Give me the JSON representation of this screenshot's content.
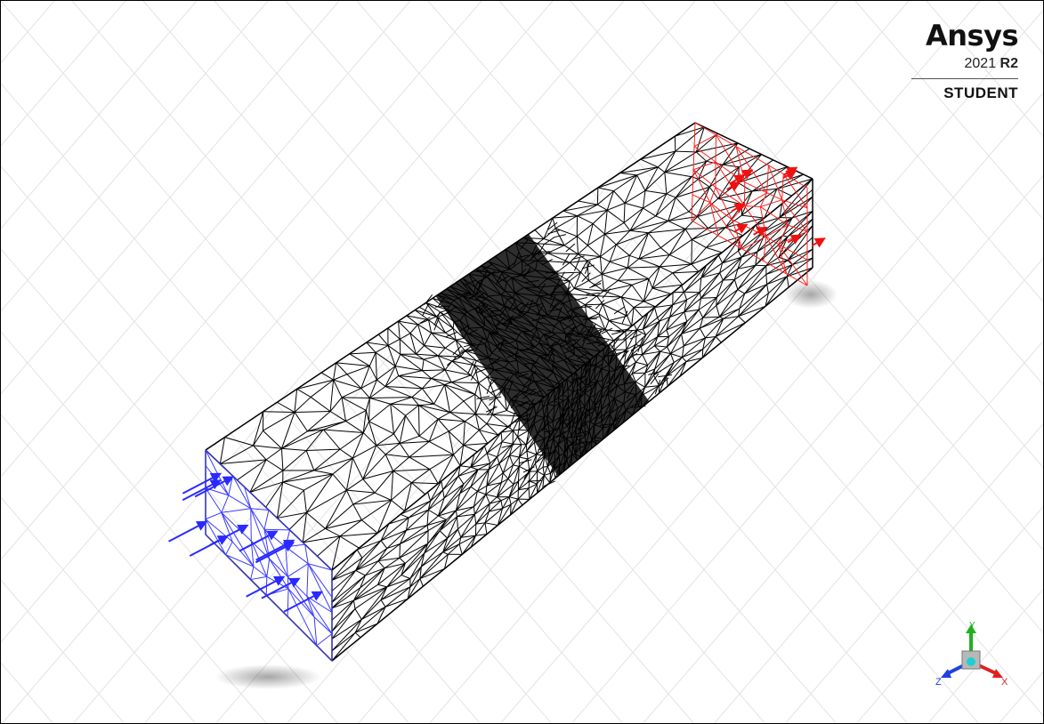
{
  "branding": {
    "wordmark": "Ansys",
    "year": "2021",
    "release": "R2",
    "edition": "STUDENT"
  },
  "viewport": {
    "content": "tetrahedral mesh of rectangular bar with applied end loads",
    "colors": {
      "background": "#ffffff",
      "grid": "#e3e3e3",
      "mesh": "#000000",
      "fixed_end": "#3a3aff",
      "load_end": "#ff2020"
    }
  },
  "triad": {
    "axes": [
      "X",
      "Y",
      "Z"
    ],
    "colors": {
      "x": "#e02020",
      "y": "#20b020",
      "z": "#2040e0"
    }
  }
}
